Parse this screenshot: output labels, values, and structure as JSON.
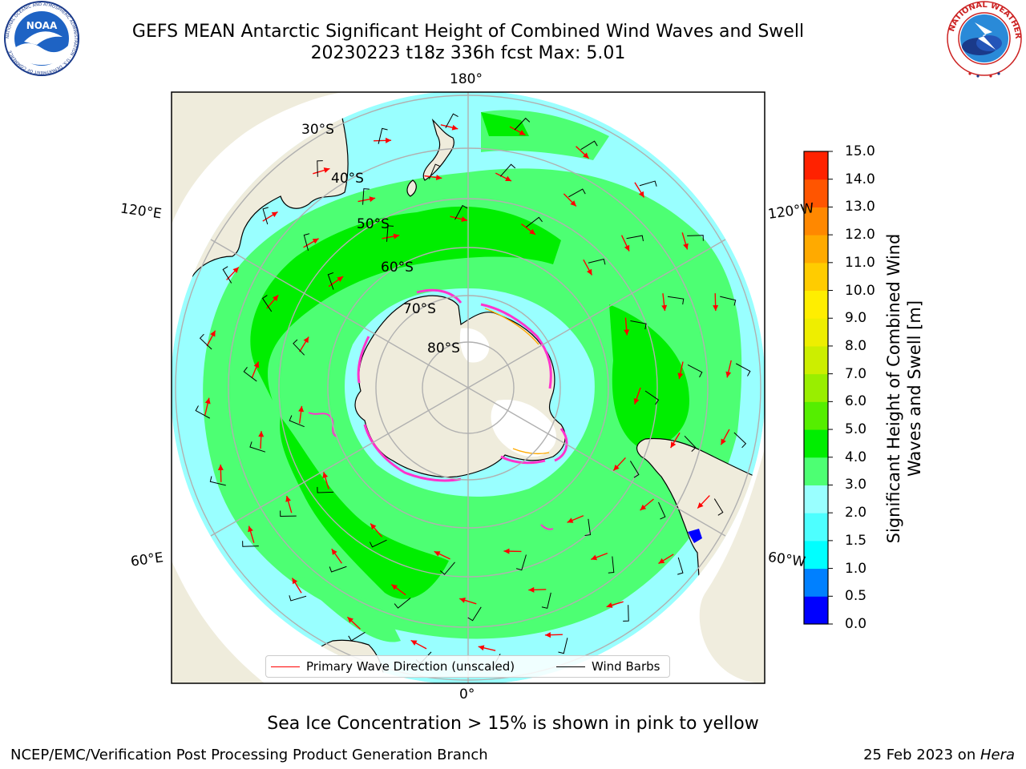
{
  "header": {
    "title_line1": "GEFS MEAN Antarctic Significant Height of Combined Wind Waves and Swell",
    "title_line2": "20230223 t18z 336h fcst   Max: 5.01"
  },
  "logos": {
    "left": "noaa-logo",
    "right": "national-weather-service-logo",
    "left_text": "NOAA",
    "left_ring_text": "NATIONAL OCEANIC AND ATMOSPHERIC ADMINISTRATION · U.S. DEPARTMENT OF COMMERCE",
    "right_ring_text": "NATIONAL WEATHER SERVICE"
  },
  "map": {
    "projection": "south-polar-stereographic",
    "longitude_labels": {
      "top": "180°",
      "bottom": "0°",
      "upper_left": "120°E",
      "lower_left": "60°E",
      "upper_right": "120°W",
      "lower_right": "60°W"
    },
    "latitude_labels": [
      "30°S",
      "40°S",
      "50°S",
      "60°S",
      "70°S",
      "80°S"
    ],
    "colors": {
      "land": "#efecdc",
      "wave_0_5": "#0000ff",
      "wave_1_5": "#00ffff",
      "wave_2_0": "#99ffff",
      "wave_3_0": "#4dff73",
      "wave_4_0": "#00ee00",
      "sea_ice": "#ff33cc",
      "wave_arrow": "#ff0000",
      "wind_barb": "#000000",
      "graticule": "#b0b0b0"
    }
  },
  "legend": {
    "wave_direction_label": "Primary Wave Direction (unscaled)",
    "wind_barbs_label": "Wind Barbs"
  },
  "colorbar": {
    "label": "Significant Height of Combined Wind Waves and Swell [m]",
    "ticks": [
      "0.0",
      "0.5",
      "1.0",
      "1.5",
      "2.0",
      "3.0",
      "4.0",
      "5.0",
      "6.0",
      "7.0",
      "8.0",
      "9.0",
      "10.0",
      "11.0",
      "12.0",
      "13.0",
      "14.0",
      "15.0"
    ],
    "colors": [
      "#0000ff",
      "#0080ff",
      "#00ffff",
      "#4dffff",
      "#99ffff",
      "#4dff73",
      "#00ee00",
      "#55ee00",
      "#99ee00",
      "#ccee00",
      "#eeee00",
      "#ffee00",
      "#ffcc00",
      "#ffaa00",
      "#ff8800",
      "#ff5500",
      "#ff2200"
    ]
  },
  "caption": "Sea Ice Concentration > 15% is shown in pink to yellow",
  "footer": {
    "left": "NCEP/EMC/Verification Post Processing Product Generation Branch",
    "right_date": "25 Feb 2023 on ",
    "right_machine": "Hera"
  }
}
